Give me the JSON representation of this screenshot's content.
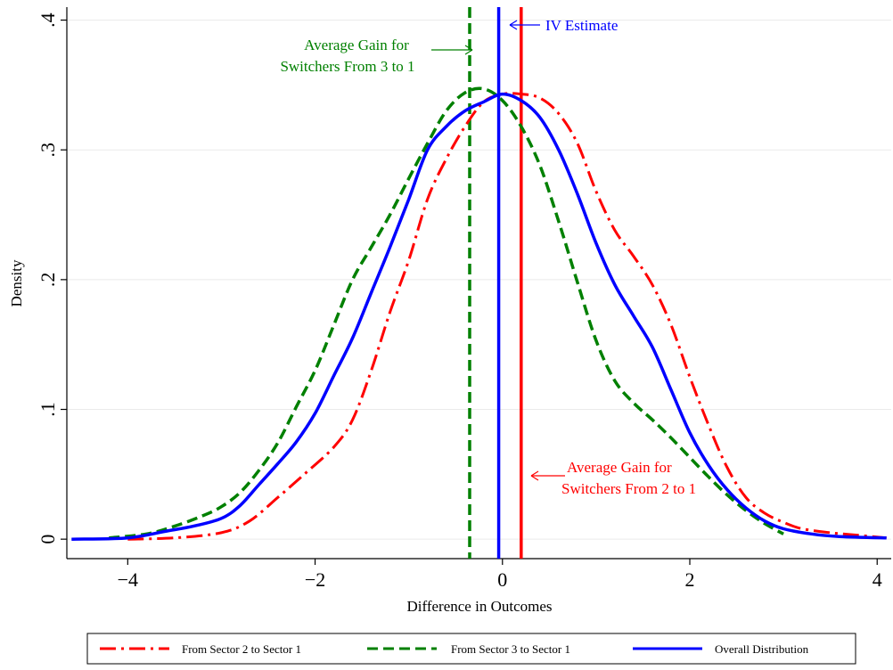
{
  "chart_data": {
    "type": "line",
    "title": "",
    "xlabel": "Difference in Outcomes",
    "ylabel": "Density",
    "xlim": [
      -4.65,
      4.15
    ],
    "ylim": [
      -0.015,
      0.41
    ],
    "xticks": [
      -4,
      -2,
      0,
      2,
      4
    ],
    "xtick_labels": [
      "−4",
      "−2",
      "0",
      "2",
      "4"
    ],
    "yticks": [
      0,
      0.1,
      0.2,
      0.3,
      0.4
    ],
    "ytick_labels": [
      "0",
      ".1",
      ".2",
      ".3",
      ".4"
    ],
    "grid": "horizontal",
    "legend": "bottom",
    "series": [
      {
        "name": "From Sector 2 to Sector 1",
        "color": "#ff0000",
        "style": "dashdot",
        "points": [
          [
            -4.0,
            0.0
          ],
          [
            -3.5,
            0.001
          ],
          [
            -3.0,
            0.005
          ],
          [
            -2.7,
            0.014
          ],
          [
            -2.4,
            0.032
          ],
          [
            -2.1,
            0.051
          ],
          [
            -1.8,
            0.071
          ],
          [
            -1.6,
            0.092
          ],
          [
            -1.4,
            0.13
          ],
          [
            -1.2,
            0.175
          ],
          [
            -1.0,
            0.215
          ],
          [
            -0.8,
            0.262
          ],
          [
            -0.6,
            0.293
          ],
          [
            -0.4,
            0.318
          ],
          [
            -0.2,
            0.337
          ],
          [
            0.0,
            0.343
          ],
          [
            0.2,
            0.343
          ],
          [
            0.4,
            0.34
          ],
          [
            0.6,
            0.328
          ],
          [
            0.8,
            0.305
          ],
          [
            1.0,
            0.268
          ],
          [
            1.2,
            0.238
          ],
          [
            1.4,
            0.218
          ],
          [
            1.6,
            0.196
          ],
          [
            1.8,
            0.165
          ],
          [
            2.0,
            0.125
          ],
          [
            2.2,
            0.088
          ],
          [
            2.4,
            0.055
          ],
          [
            2.6,
            0.032
          ],
          [
            2.8,
            0.02
          ],
          [
            3.0,
            0.013
          ],
          [
            3.2,
            0.008
          ],
          [
            3.5,
            0.005
          ],
          [
            3.8,
            0.003
          ],
          [
            4.1,
            0.001
          ]
        ]
      },
      {
        "name": "From Sector 3 to Sector 1",
        "color": "#008000",
        "style": "dashed",
        "points": [
          [
            -4.2,
            0.001
          ],
          [
            -3.8,
            0.004
          ],
          [
            -3.5,
            0.01
          ],
          [
            -3.2,
            0.018
          ],
          [
            -3.0,
            0.025
          ],
          [
            -2.8,
            0.036
          ],
          [
            -2.6,
            0.053
          ],
          [
            -2.4,
            0.074
          ],
          [
            -2.2,
            0.102
          ],
          [
            -2.0,
            0.13
          ],
          [
            -1.8,
            0.165
          ],
          [
            -1.6,
            0.2
          ],
          [
            -1.4,
            0.225
          ],
          [
            -1.2,
            0.25
          ],
          [
            -1.0,
            0.278
          ],
          [
            -0.8,
            0.305
          ],
          [
            -0.6,
            0.33
          ],
          [
            -0.4,
            0.344
          ],
          [
            -0.2,
            0.347
          ],
          [
            0.0,
            0.338
          ],
          [
            0.2,
            0.318
          ],
          [
            0.4,
            0.288
          ],
          [
            0.6,
            0.245
          ],
          [
            0.8,
            0.198
          ],
          [
            1.0,
            0.153
          ],
          [
            1.2,
            0.122
          ],
          [
            1.4,
            0.105
          ],
          [
            1.6,
            0.092
          ],
          [
            1.8,
            0.078
          ],
          [
            2.0,
            0.063
          ],
          [
            2.2,
            0.048
          ],
          [
            2.4,
            0.034
          ],
          [
            2.6,
            0.022
          ],
          [
            2.8,
            0.012
          ],
          [
            3.0,
            0.004
          ]
        ]
      },
      {
        "name": "Overall Distribution",
        "color": "#0000ff",
        "style": "solid",
        "points": [
          [
            -4.6,
            0.0
          ],
          [
            -4.0,
            0.001
          ],
          [
            -3.6,
            0.006
          ],
          [
            -3.3,
            0.01
          ],
          [
            -3.0,
            0.016
          ],
          [
            -2.8,
            0.026
          ],
          [
            -2.6,
            0.042
          ],
          [
            -2.4,
            0.058
          ],
          [
            -2.2,
            0.075
          ],
          [
            -2.0,
            0.097
          ],
          [
            -1.8,
            0.126
          ],
          [
            -1.6,
            0.155
          ],
          [
            -1.4,
            0.19
          ],
          [
            -1.2,
            0.225
          ],
          [
            -1.0,
            0.262
          ],
          [
            -0.8,
            0.3
          ],
          [
            -0.6,
            0.318
          ],
          [
            -0.4,
            0.33
          ],
          [
            -0.2,
            0.337
          ],
          [
            0.0,
            0.343
          ],
          [
            0.2,
            0.338
          ],
          [
            0.4,
            0.325
          ],
          [
            0.6,
            0.3
          ],
          [
            0.8,
            0.266
          ],
          [
            1.0,
            0.228
          ],
          [
            1.2,
            0.196
          ],
          [
            1.4,
            0.172
          ],
          [
            1.6,
            0.148
          ],
          [
            1.8,
            0.115
          ],
          [
            2.0,
            0.082
          ],
          [
            2.2,
            0.057
          ],
          [
            2.4,
            0.038
          ],
          [
            2.6,
            0.024
          ],
          [
            2.8,
            0.014
          ],
          [
            3.0,
            0.008
          ],
          [
            3.3,
            0.004
          ],
          [
            3.6,
            0.002
          ],
          [
            4.1,
            0.001
          ]
        ]
      }
    ],
    "vlines": [
      {
        "name": "vline-sector-3",
        "x": -0.35,
        "color": "#008000",
        "style": "dashed"
      },
      {
        "name": "vline-iv-estimate",
        "x": -0.04,
        "color": "#0000ff",
        "style": "solid"
      },
      {
        "name": "vline-sector-2",
        "x": 0.2,
        "color": "#ff0000",
        "style": "solid"
      }
    ],
    "annotations": [
      {
        "name": "annotation-sector-3",
        "lines": [
          "Average Gain for",
          "Switchers From 3 to 1"
        ],
        "color": "#008000"
      },
      {
        "name": "annotation-iv-estimate",
        "lines": [
          "IV Estimate"
        ],
        "color": "#0000ff"
      },
      {
        "name": "annotation-sector-2",
        "lines": [
          "Average Gain for",
          "Switchers From 2 to 1"
        ],
        "color": "#ff0000"
      }
    ]
  }
}
